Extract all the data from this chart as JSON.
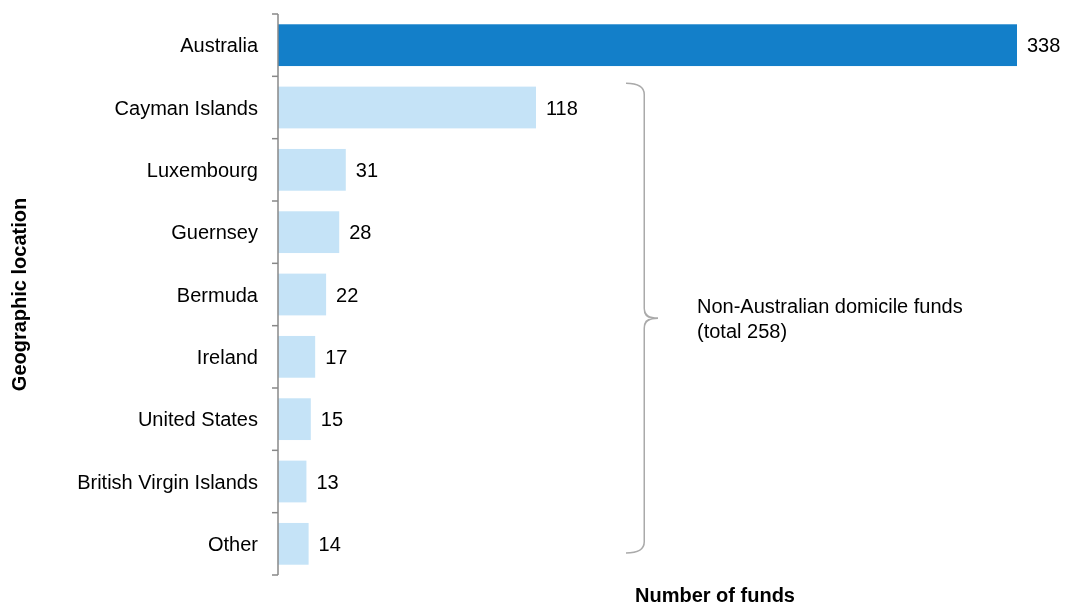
{
  "chart_data": {
    "type": "bar",
    "orientation": "horizontal",
    "xlabel": "Number of funds",
    "ylabel": "Geographic location",
    "categories": [
      "Australia",
      "Cayman Islands",
      "Luxembourg",
      "Guernsey",
      "Bermuda",
      "Ireland",
      "United States",
      "British Virgin Islands",
      "Other"
    ],
    "values": [
      338,
      118,
      31,
      28,
      22,
      17,
      15,
      13,
      14
    ],
    "colors": [
      "#137fc9",
      "#c5e3f7",
      "#c5e3f7",
      "#c5e3f7",
      "#c5e3f7",
      "#c5e3f7",
      "#c5e3f7",
      "#c5e3f7",
      "#c5e3f7"
    ],
    "data_labels": true,
    "tick_labels": "y",
    "annotations": [
      "Non-Australian domicile funds (total 258)"
    ]
  }
}
